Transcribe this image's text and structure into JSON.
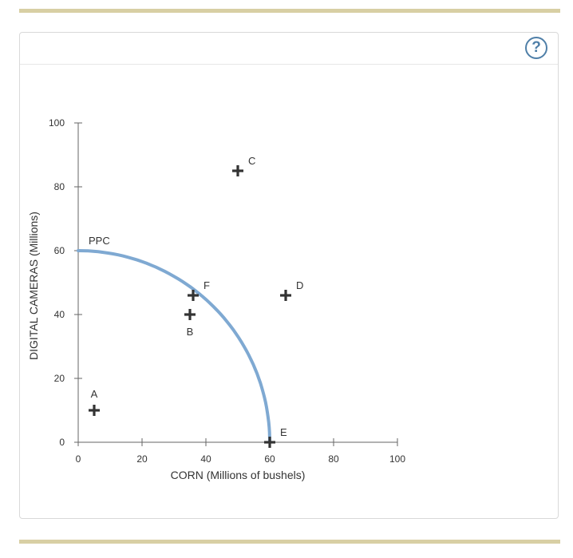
{
  "help": {
    "symbol": "?"
  },
  "chart_data": {
    "type": "scatter",
    "xlabel": "CORN (Millions of bushels)",
    "ylabel": "DIGITAL CAMERAS (Millions)",
    "xlim": [
      0,
      100
    ],
    "ylim": [
      0,
      100
    ],
    "xticks": [
      0,
      20,
      40,
      60,
      80,
      100
    ],
    "yticks": [
      0,
      20,
      40,
      60,
      80,
      100
    ],
    "curve": {
      "name": "PPC",
      "x_intercept": 60,
      "y_intercept": 60,
      "color": "#7fa9d2"
    },
    "points": [
      {
        "label": "A",
        "x": 5,
        "y": 10
      },
      {
        "label": "B",
        "x": 35,
        "y": 40
      },
      {
        "label": "C",
        "x": 50,
        "y": 85
      },
      {
        "label": "D",
        "x": 65,
        "y": 46
      },
      {
        "label": "E",
        "x": 60,
        "y": 0
      },
      {
        "label": "F",
        "x": 36,
        "y": 46
      }
    ],
    "marker_color": "#333333"
  }
}
